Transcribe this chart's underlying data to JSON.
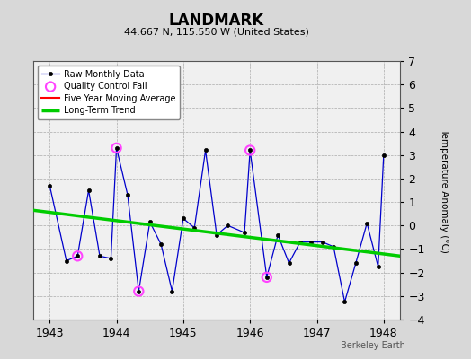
{
  "title": "LANDMARK",
  "subtitle": "44.667 N, 115.550 W (United States)",
  "ylabel": "Temperature Anomaly (°C)",
  "credit": "Berkeley Earth",
  "ylim": [
    -4,
    7
  ],
  "yticks": [
    -4,
    -3,
    -2,
    -1,
    0,
    1,
    2,
    3,
    4,
    5,
    6,
    7
  ],
  "xlim": [
    1942.75,
    1948.25
  ],
  "xticks": [
    1943,
    1944,
    1945,
    1946,
    1947,
    1948
  ],
  "raw_x": [
    1943.0,
    1943.25,
    1943.417,
    1943.583,
    1943.75,
    1943.917,
    1944.0,
    1944.167,
    1944.333,
    1944.5,
    1944.667,
    1944.833,
    1945.0,
    1945.167,
    1945.333,
    1945.5,
    1945.667,
    1945.917,
    1946.0,
    1946.25,
    1946.417,
    1946.583,
    1946.75,
    1946.917,
    1947.083,
    1947.25,
    1947.417,
    1947.583,
    1947.75,
    1947.917,
    1948.0
  ],
  "raw_y": [
    1.7,
    -1.5,
    -1.3,
    1.5,
    -1.3,
    -1.4,
    3.3,
    1.3,
    -2.8,
    0.15,
    -0.8,
    -2.8,
    0.3,
    -0.1,
    3.2,
    -0.4,
    0.0,
    -0.3,
    3.2,
    -2.2,
    -0.4,
    -1.6,
    -0.7,
    -0.7,
    -0.7,
    -0.9,
    -3.25,
    -1.6,
    0.1,
    -1.75,
    3.0
  ],
  "qc_fail_x": [
    1943.417,
    1944.0,
    1944.333,
    1946.0,
    1946.25
  ],
  "qc_fail_y": [
    -1.3,
    3.3,
    -2.8,
    3.2,
    -2.2
  ],
  "trend_x": [
    1942.75,
    1948.25
  ],
  "trend_y": [
    0.65,
    -1.3
  ],
  "raw_line_color": "#0000cc",
  "raw_marker_color": "#000000",
  "qc_color": "#ff44ff",
  "trend_color": "#00cc00",
  "ma_color": "#ff0000",
  "bg_color": "#d8d8d8",
  "plot_bg_color": "#f0f0f0",
  "grid_color": "#aaaaaa"
}
